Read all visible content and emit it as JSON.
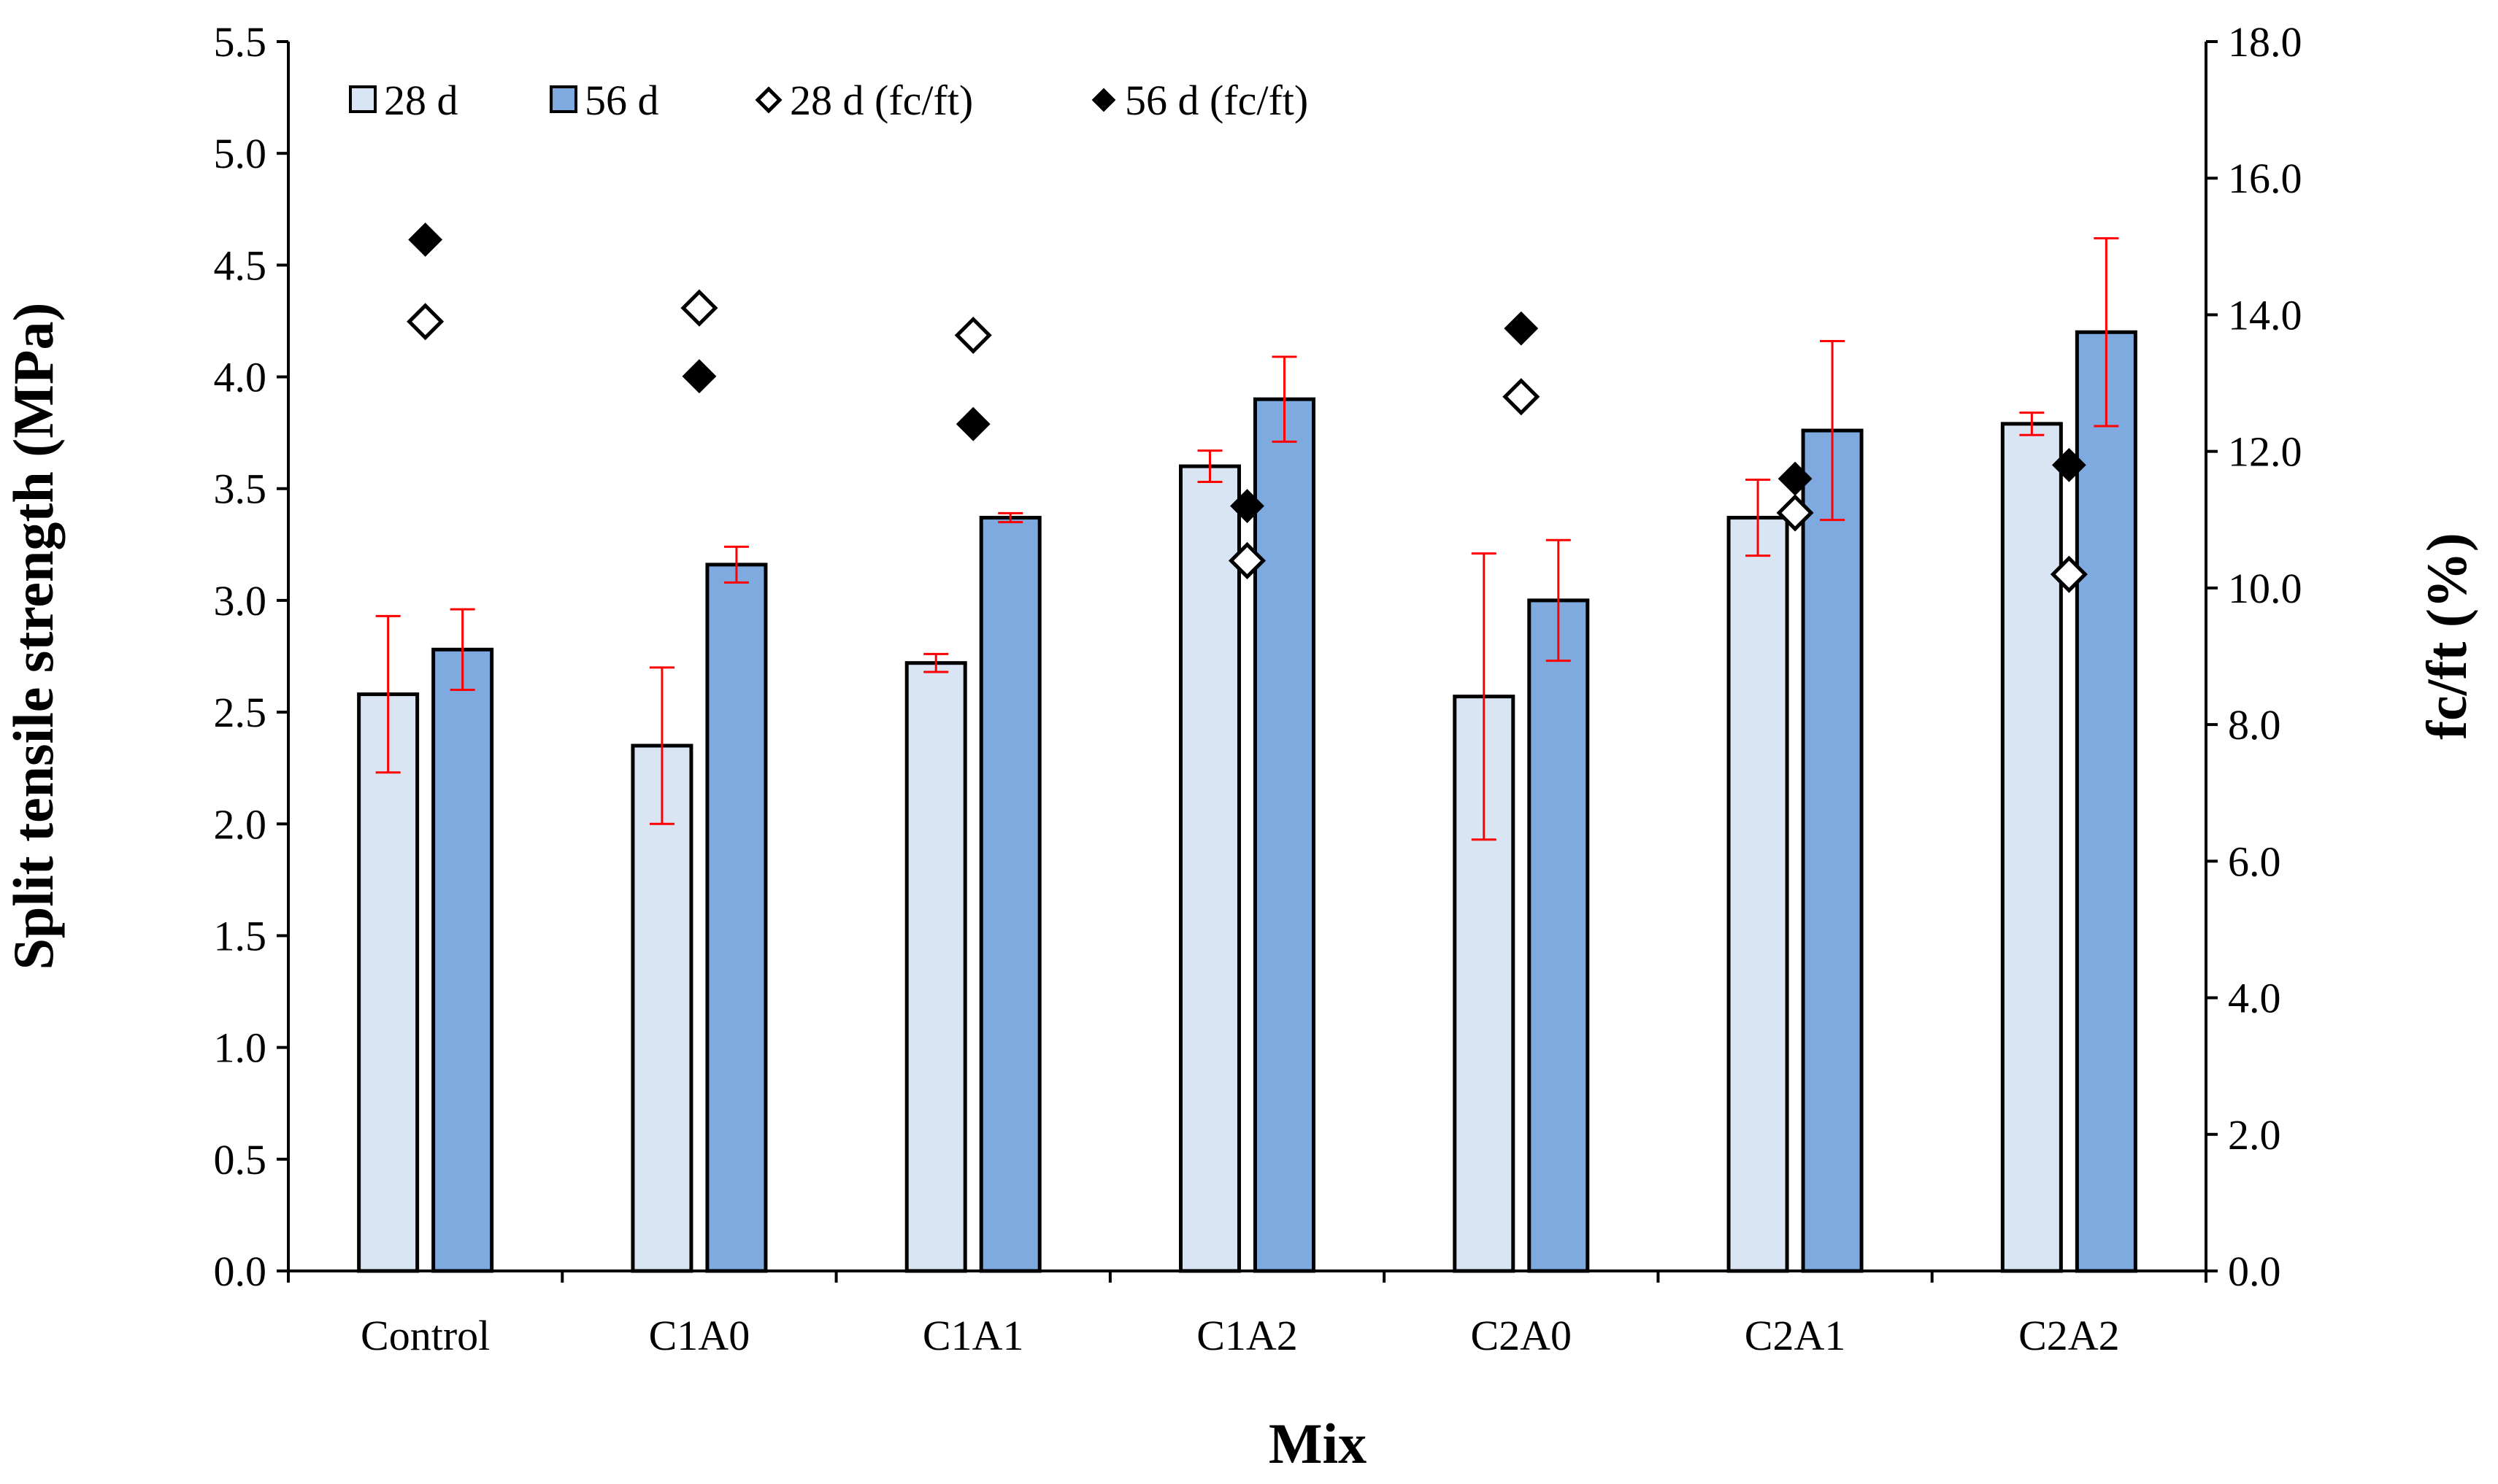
{
  "chart_data": {
    "type": "bar",
    "categories": [
      "Control",
      "C1A0",
      "C1A1",
      "C1A2",
      "C2A0",
      "C2A1",
      "C2A2"
    ],
    "xlabel": "Mix",
    "ylabel": "Split tensile strength (MPa)",
    "y2label": "fc/ft (%)",
    "ylim": [
      0,
      5.5
    ],
    "y2lim": [
      0,
      18
    ],
    "yticks": [
      "0.0",
      "0.5",
      "1.0",
      "1.5",
      "2.0",
      "2.5",
      "3.0",
      "3.5",
      "4.0",
      "4.5",
      "5.0",
      "5.5"
    ],
    "y2ticks": [
      "0.0",
      "2.0",
      "4.0",
      "6.0",
      "8.0",
      "10.0",
      "12.0",
      "14.0",
      "16.0",
      "18.0"
    ],
    "legend_position": "top-left",
    "series": [
      {
        "name": "28 d",
        "kind": "bar",
        "axis": "left",
        "color": "#dae5f4",
        "values": [
          2.58,
          2.35,
          2.72,
          3.6,
          2.57,
          3.37,
          3.79
        ],
        "errors": [
          0.35,
          0.35,
          0.04,
          0.07,
          0.64,
          0.17,
          0.05
        ]
      },
      {
        "name": "56 d",
        "kind": "bar",
        "axis": "left",
        "color": "#7faadf",
        "values": [
          2.78,
          3.16,
          3.37,
          3.9,
          3.0,
          3.76,
          4.2
        ],
        "errors": [
          0.18,
          0.08,
          0.02,
          0.19,
          0.27,
          0.4,
          0.42
        ]
      },
      {
        "name": "28 d (fc/ft)",
        "kind": "scatter",
        "axis": "right",
        "marker": "diamond-open",
        "values": [
          13.9,
          14.1,
          13.7,
          10.4,
          12.8,
          11.1,
          10.2
        ]
      },
      {
        "name": "56 d (fc/ft)",
        "kind": "scatter",
        "axis": "right",
        "marker": "diamond-filled",
        "values": [
          15.1,
          13.1,
          12.4,
          11.2,
          13.8,
          11.6,
          11.8
        ]
      }
    ],
    "colors": {
      "error_bar": "#ff0000",
      "axis": "#000000",
      "bar_outline": "#000000"
    }
  }
}
